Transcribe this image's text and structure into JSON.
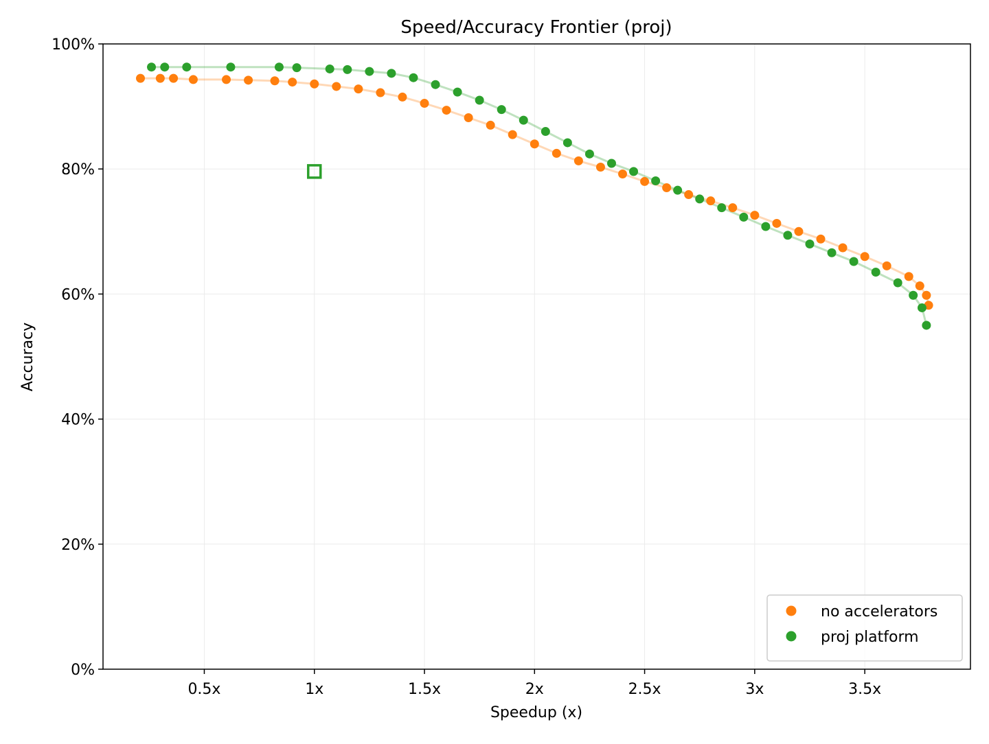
{
  "chart_data": {
    "type": "scatter",
    "title": "Speed/Accuracy Frontier (proj)",
    "x_label": "Speedup (x)",
    "y_label": "Accuracy",
    "xlim": [
      0.04,
      3.98
    ],
    "ylim": [
      0,
      100
    ],
    "xticks": [
      {
        "value": 0.5,
        "label": "0.5x"
      },
      {
        "value": 1,
        "label": "1x"
      },
      {
        "value": 1.5,
        "label": "1.5x"
      },
      {
        "value": 2,
        "label": "2x"
      },
      {
        "value": 2.5,
        "label": "2.5x"
      },
      {
        "value": 3,
        "label": "3x"
      },
      {
        "value": 3.5,
        "label": "3.5x"
      }
    ],
    "yticks": [
      {
        "value": 0,
        "label": "0%"
      },
      {
        "value": 20,
        "label": "20%"
      },
      {
        "value": 40,
        "label": "40%"
      },
      {
        "value": 60,
        "label": "60%"
      },
      {
        "value": 80,
        "label": "80%"
      },
      {
        "value": 100,
        "label": "100%"
      }
    ],
    "grid": true,
    "legend": "lower right",
    "series": [
      {
        "name": "no accelerators",
        "color": "#ff7f0e",
        "x": [
          0.21,
          0.3,
          0.36,
          0.45,
          0.6,
          0.7,
          0.82,
          0.9,
          1.0,
          1.1,
          1.2,
          1.3,
          1.4,
          1.5,
          1.6,
          1.7,
          1.8,
          1.9,
          2.0,
          2.1,
          2.2,
          2.3,
          2.4,
          2.5,
          2.6,
          2.7,
          2.8,
          2.9,
          3.0,
          3.1,
          3.2,
          3.3,
          3.4,
          3.5,
          3.6,
          3.7,
          3.75,
          3.78,
          3.79
        ],
        "values": [
          94.5,
          94.5,
          94.5,
          94.3,
          94.3,
          94.2,
          94.1,
          93.9,
          93.6,
          93.2,
          92.8,
          92.2,
          91.5,
          90.5,
          89.4,
          88.2,
          87.0,
          85.5,
          84.0,
          82.5,
          81.3,
          80.3,
          79.2,
          78.0,
          77.0,
          75.9,
          74.9,
          73.8,
          72.6,
          71.3,
          70.0,
          68.8,
          67.4,
          66.0,
          64.5,
          62.8,
          61.3,
          59.8,
          58.2
        ]
      },
      {
        "name": "proj platform",
        "color": "#2ca02c",
        "x": [
          0.26,
          0.32,
          0.42,
          0.62,
          0.84,
          0.92,
          1.07,
          1.15,
          1.25,
          1.35,
          1.45,
          1.55,
          1.65,
          1.75,
          1.85,
          1.95,
          2.05,
          2.15,
          2.25,
          2.35,
          2.45,
          2.55,
          2.65,
          2.75,
          2.85,
          2.95,
          3.05,
          3.15,
          3.25,
          3.35,
          3.45,
          3.55,
          3.65,
          3.72,
          3.76,
          3.78
        ],
        "values": [
          96.3,
          96.3,
          96.3,
          96.3,
          96.3,
          96.2,
          96.0,
          95.9,
          95.6,
          95.3,
          94.6,
          93.5,
          92.3,
          91.0,
          89.5,
          87.8,
          86.0,
          84.2,
          82.4,
          80.9,
          79.6,
          78.1,
          76.6,
          75.2,
          73.8,
          72.3,
          70.8,
          69.4,
          68.0,
          66.6,
          65.2,
          63.5,
          61.8,
          59.8,
          57.8,
          55.0
        ]
      }
    ],
    "markers": [
      {
        "x": 1,
        "y": 79.6,
        "color": "#2ca02c"
      }
    ]
  }
}
